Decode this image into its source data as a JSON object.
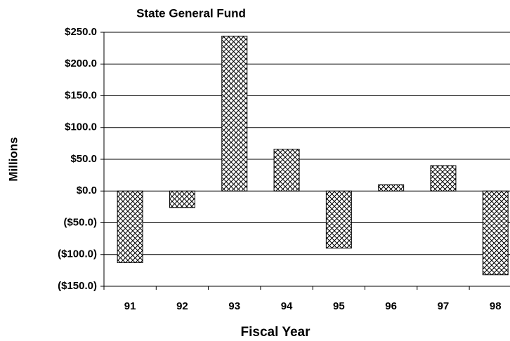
{
  "chart_data": {
    "type": "bar",
    "title": "State General Fund",
    "x_label": "Fiscal Year",
    "y_label": "Millions",
    "categories": [
      "91",
      "92",
      "93",
      "94",
      "95",
      "96",
      "97",
      "98"
    ],
    "values": [
      -113,
      -26,
      244,
      66,
      -90,
      10,
      40,
      -132
    ],
    "color": "#000000",
    "ylim": [
      -150,
      250
    ],
    "yticks": [
      {
        "value": -150,
        "label": "($150.0)"
      },
      {
        "value": -100,
        "label": "($100.0)"
      },
      {
        "value": -50,
        "label": "($50.0)"
      },
      {
        "value": 0,
        "label": "$0.0"
      },
      {
        "value": 50,
        "label": "$50.0"
      },
      {
        "value": 100,
        "label": "$100.0"
      },
      {
        "value": 150,
        "label": "$150.0"
      },
      {
        "value": 200,
        "label": "$200.0"
      },
      {
        "value": 250,
        "label": "$250.0"
      }
    ],
    "grid": true
  }
}
